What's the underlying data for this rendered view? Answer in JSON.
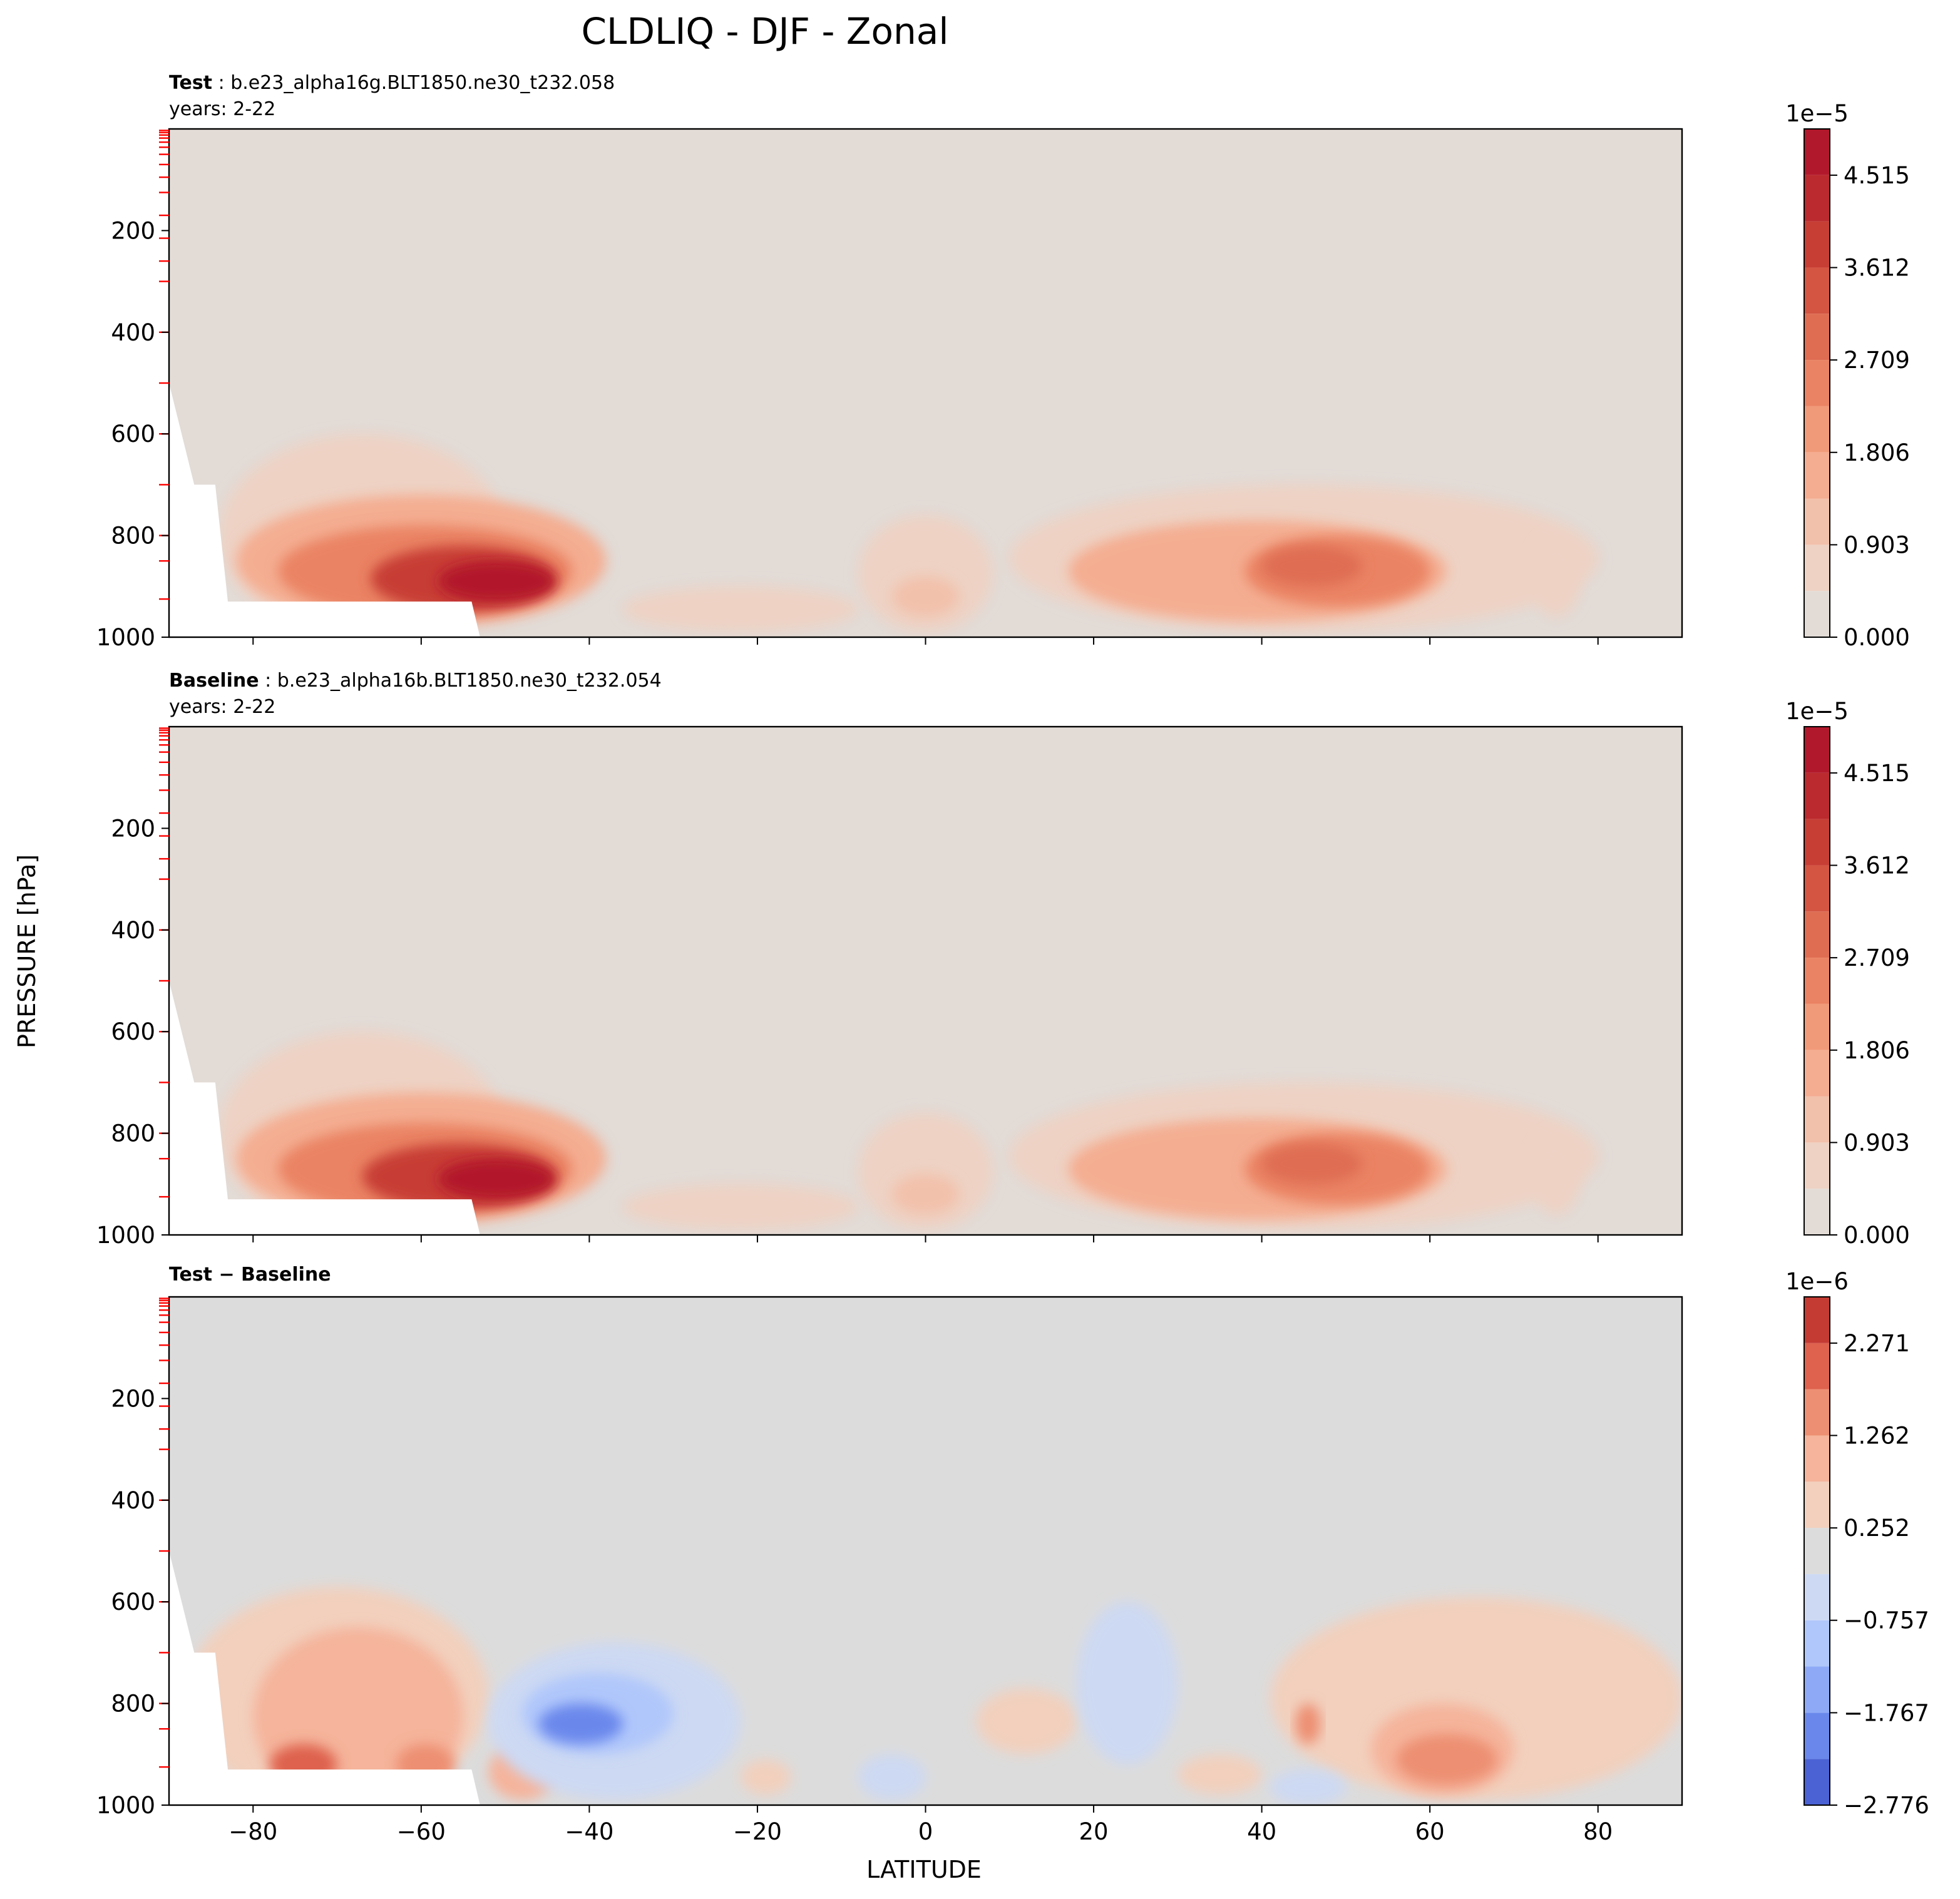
{
  "title": "CLDLIQ - DJF - Zonal",
  "shared": {
    "xlabel": "LATITUDE",
    "ylabel": "PRESSURE [hPa]",
    "xticks": [
      -80,
      -60,
      -40,
      -20,
      0,
      20,
      40,
      60,
      80
    ],
    "yticks": [
      200,
      400,
      600,
      800,
      1000
    ],
    "xlim": [
      -90,
      90
    ],
    "ylim": [
      1000,
      0
    ],
    "xlim_note_hidden": true
  },
  "chart_data": [
    {
      "type": "heatmap",
      "panel": "test",
      "label_bold": "Test",
      "label_rest": ": b.e23_alpha16g.BLT1850.ne30_t232.058",
      "years": "years: 2-22",
      "colorbar": {
        "exponent": "1e−5",
        "ticks": [
          0.0,
          0.903,
          1.806,
          2.709,
          3.612,
          4.515
        ],
        "tick_labels": [
          "0.000",
          "0.903",
          "1.806",
          "2.709",
          "3.612",
          "4.515"
        ],
        "levels": 11,
        "range": [
          0,
          4.967
        ],
        "colors": [
          "#e2dbd6",
          "#eed2c4",
          "#f2c1ab",
          "#f4ad91",
          "#f19a79",
          "#ea8363",
          "#df6d52",
          "#d45542",
          "#c73e35",
          "#bb2a2e",
          "#b2182b"
        ]
      },
      "blobs": [
        {
          "lat": [
            -84,
            -50
          ],
          "p": [
            600,
            1000
          ],
          "level": 1
        },
        {
          "lat": [
            -82,
            -38
          ],
          "p": [
            720,
            980
          ],
          "level": 3
        },
        {
          "lat": [
            -77,
            -42
          ],
          "p": [
            780,
            960
          ],
          "level": 5
        },
        {
          "lat": [
            -66,
            -44
          ],
          "p": [
            820,
            950
          ],
          "level": 8
        },
        {
          "lat": [
            -58,
            -44
          ],
          "p": [
            850,
            930
          ],
          "level": 10
        },
        {
          "lat": [
            -36,
            -8
          ],
          "p": [
            900,
            990
          ],
          "level": 1
        },
        {
          "lat": [
            -8,
            8
          ],
          "p": [
            760,
            990
          ],
          "level": 1
        },
        {
          "lat": [
            -4,
            4
          ],
          "p": [
            880,
            960
          ],
          "level": 2
        },
        {
          "lat": [
            10,
            80
          ],
          "p": [
            700,
            990
          ],
          "level": 1
        },
        {
          "lat": [
            17,
            62
          ],
          "p": [
            770,
            970
          ],
          "level": 3
        },
        {
          "lat": [
            38,
            60
          ],
          "p": [
            800,
            940
          ],
          "level": 5
        },
        {
          "lat": [
            40,
            52
          ],
          "p": [
            820,
            900
          ],
          "level": 6
        },
        {
          "lat": [
            72,
            78
          ],
          "p": [
            800,
            960
          ],
          "level": 1
        }
      ]
    },
    {
      "type": "heatmap",
      "panel": "baseline",
      "label_bold": "Baseline",
      "label_rest": ": b.e23_alpha16b.BLT1850.ne30_t232.054",
      "years": "years: 2-22",
      "colorbar": {
        "exponent": "1e−5",
        "ticks": [
          0.0,
          0.903,
          1.806,
          2.709,
          3.612,
          4.515
        ],
        "tick_labels": [
          "0.000",
          "0.903",
          "1.806",
          "2.709",
          "3.612",
          "4.515"
        ],
        "levels": 11,
        "range": [
          0,
          4.967
        ],
        "colors": [
          "#e2dbd6",
          "#eed2c4",
          "#f2c1ab",
          "#f4ad91",
          "#f19a79",
          "#ea8363",
          "#df6d52",
          "#d45542",
          "#c73e35",
          "#bb2a2e",
          "#b2182b"
        ]
      },
      "blobs": [
        {
          "lat": [
            -84,
            -50
          ],
          "p": [
            600,
            1000
          ],
          "level": 1
        },
        {
          "lat": [
            -82,
            -38
          ],
          "p": [
            720,
            980
          ],
          "level": 3
        },
        {
          "lat": [
            -77,
            -42
          ],
          "p": [
            780,
            960
          ],
          "level": 5
        },
        {
          "lat": [
            -67,
            -44
          ],
          "p": [
            820,
            950
          ],
          "level": 8
        },
        {
          "lat": [
            -58,
            -44
          ],
          "p": [
            850,
            930
          ],
          "level": 10
        },
        {
          "lat": [
            -36,
            -8
          ],
          "p": [
            900,
            990
          ],
          "level": 1
        },
        {
          "lat": [
            -8,
            8
          ],
          "p": [
            760,
            990
          ],
          "level": 1
        },
        {
          "lat": [
            -4,
            4
          ],
          "p": [
            880,
            960
          ],
          "level": 2
        },
        {
          "lat": [
            10,
            80
          ],
          "p": [
            700,
            990
          ],
          "level": 1
        },
        {
          "lat": [
            17,
            62
          ],
          "p": [
            770,
            970
          ],
          "level": 3
        },
        {
          "lat": [
            38,
            60
          ],
          "p": [
            800,
            940
          ],
          "level": 5
        },
        {
          "lat": [
            40,
            52
          ],
          "p": [
            820,
            900
          ],
          "level": 6
        },
        {
          "lat": [
            72,
            78
          ],
          "p": [
            800,
            960
          ],
          "level": 1
        }
      ]
    },
    {
      "type": "heatmap",
      "panel": "difference",
      "label_bold": "Test − Baseline",
      "label_rest": "",
      "years": "",
      "colorbar": {
        "exponent": "1e−6",
        "ticks": [
          -2.776,
          -1.767,
          -0.757,
          0.252,
          1.262,
          2.271
        ],
        "tick_labels": [
          "−2.776",
          "−1.767",
          "−0.757",
          "0.252",
          "1.262",
          "2.271"
        ],
        "levels": 11,
        "range": [
          -2.776,
          2.776
        ],
        "colors": [
          "#4a62d4",
          "#6a88ec",
          "#8eaaf7",
          "#b0c7fb",
          "#cdd9f3",
          "#dcdcdc",
          "#f2d0bd",
          "#f5b49b",
          "#ed8f72",
          "#de624e",
          "#c43b33"
        ]
      },
      "blobs": [
        {
          "lat": [
            -88,
            -52
          ],
          "p": [
            570,
            1000
          ],
          "level": 6
        },
        {
          "lat": [
            -80,
            -55
          ],
          "p": [
            650,
            1000
          ],
          "level": 7
        },
        {
          "lat": [
            -78,
            -70
          ],
          "p": [
            880,
            960
          ],
          "level": 9
        },
        {
          "lat": [
            -63,
            -56
          ],
          "p": [
            880,
            960
          ],
          "level": 8
        },
        {
          "lat": [
            -52,
            -44
          ],
          "p": [
            880,
            990
          ],
          "level": 7
        },
        {
          "lat": [
            -52,
            -22
          ],
          "p": [
            680,
            990
          ],
          "level": 4
        },
        {
          "lat": [
            -48,
            -30
          ],
          "p": [
            740,
            900
          ],
          "level": 3
        },
        {
          "lat": [
            -46,
            -36
          ],
          "p": [
            800,
            880
          ],
          "level": 1
        },
        {
          "lat": [
            -22,
            -16
          ],
          "p": [
            910,
            980
          ],
          "level": 6
        },
        {
          "lat": [
            -8,
            0
          ],
          "p": [
            900,
            990
          ],
          "level": 4
        },
        {
          "lat": [
            6,
            18
          ],
          "p": [
            770,
            900
          ],
          "level": 6
        },
        {
          "lat": [
            18,
            30
          ],
          "p": [
            600,
            920
          ],
          "level": 4
        },
        {
          "lat": [
            30,
            40
          ],
          "p": [
            900,
            980
          ],
          "level": 6
        },
        {
          "lat": [
            41,
            90
          ],
          "p": [
            590,
            990
          ],
          "level": 6
        },
        {
          "lat": [
            44,
            47
          ],
          "p": [
            800,
            880
          ],
          "level": 8
        },
        {
          "lat": [
            53,
            70
          ],
          "p": [
            800,
            980
          ],
          "level": 7
        },
        {
          "lat": [
            56,
            68
          ],
          "p": [
            860,
            960
          ],
          "level": 8
        },
        {
          "lat": [
            41,
            50
          ],
          "p": [
            930,
            1000
          ],
          "level": 4
        }
      ]
    }
  ]
}
